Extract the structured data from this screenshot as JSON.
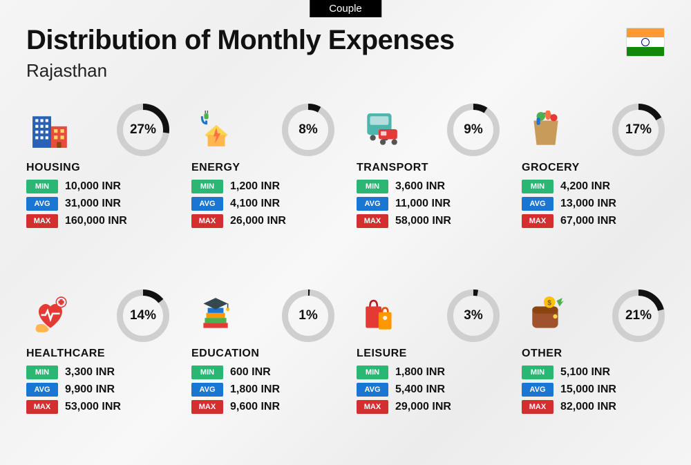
{
  "header": {
    "badge": "Couple",
    "title": "Distribution of Monthly Expenses",
    "subtitle": "Rajasthan",
    "flag": {
      "stripe1": "#ff9933",
      "stripe2": "#ffffff",
      "stripe3": "#138808",
      "chakra_color": "#000080"
    }
  },
  "labels": {
    "min": "MIN",
    "avg": "AVG",
    "max": "MAX",
    "currency": "INR"
  },
  "style": {
    "donut": {
      "size": 76,
      "stroke_width": 9,
      "track_color": "#cfcfcf",
      "arc_color": "#111111",
      "label_fontsize": 19
    },
    "badge_colors": {
      "min": "#2bb673",
      "avg": "#1976d2",
      "max": "#d32f2f"
    },
    "title_fontsize": 40,
    "subtitle_fontsize": 26,
    "category_fontsize": 16,
    "value_fontsize": 16,
    "background": "#f2f2f2"
  },
  "categories": [
    {
      "name": "HOUSING",
      "percent": 27,
      "min": "10,000",
      "avg": "31,000",
      "max": "160,000",
      "icon": "housing-icon"
    },
    {
      "name": "ENERGY",
      "percent": 8,
      "min": "1,200",
      "avg": "4,100",
      "max": "26,000",
      "icon": "energy-icon"
    },
    {
      "name": "TRANSPORT",
      "percent": 9,
      "min": "3,600",
      "avg": "11,000",
      "max": "58,000",
      "icon": "transport-icon"
    },
    {
      "name": "GROCERY",
      "percent": 17,
      "min": "4,200",
      "avg": "13,000",
      "max": "67,000",
      "icon": "grocery-icon"
    },
    {
      "name": "HEALTHCARE",
      "percent": 14,
      "min": "3,300",
      "avg": "9,900",
      "max": "53,000",
      "icon": "healthcare-icon"
    },
    {
      "name": "EDUCATION",
      "percent": 1,
      "min": "600",
      "avg": "1,800",
      "max": "9,600",
      "icon": "education-icon"
    },
    {
      "name": "LEISURE",
      "percent": 3,
      "min": "1,800",
      "avg": "5,400",
      "max": "29,000",
      "icon": "leisure-icon"
    },
    {
      "name": "OTHER",
      "percent": 21,
      "min": "5,100",
      "avg": "15,000",
      "max": "82,000",
      "icon": "other-icon"
    }
  ]
}
